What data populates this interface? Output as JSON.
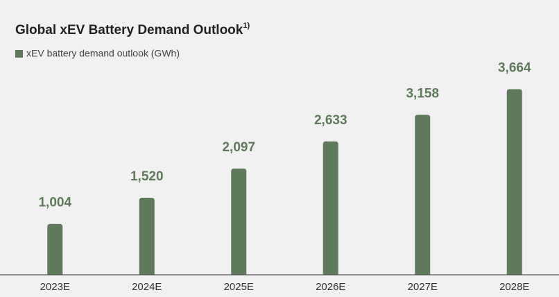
{
  "chart_data": {
    "type": "bar",
    "title": "Global xEV Battery Demand Outlook",
    "title_superscript": "1)",
    "categories": [
      "2023E",
      "2024E",
      "2025E",
      "2026E",
      "2027E",
      "2028E"
    ],
    "series": [
      {
        "name": "xEV battery demand outlook (GWh)",
        "color": "#5f7a5b",
        "values": [
          1004,
          1520,
          2097,
          2633,
          3158,
          3664
        ],
        "value_labels": [
          "1,004",
          "1,520",
          "2,097",
          "2,633",
          "3,158",
          "3,664"
        ]
      }
    ],
    "ylim": [
      0,
      4000
    ]
  }
}
